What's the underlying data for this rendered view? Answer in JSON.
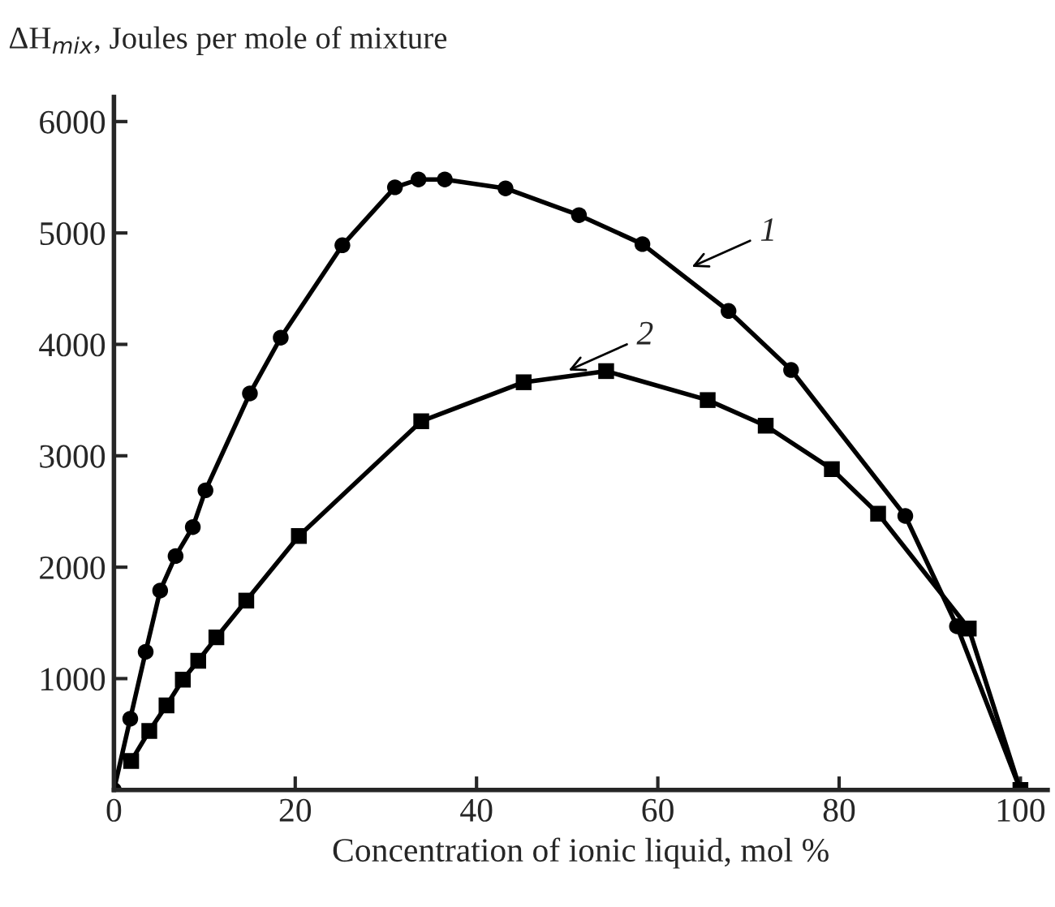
{
  "chart_data": {
    "type": "line",
    "xlabel": "Concentration of ionic liquid, mol %",
    "ylabel": "ΔH$_{mix}$, Joules per mole of mixture",
    "series": [
      {
        "color": "#000000",
        "marker": "circle",
        "x": [
          0,
          1.8,
          3.5,
          5.1,
          6.8,
          8.7,
          10.1,
          15.0,
          18.4,
          25.2,
          31.0,
          33.6,
          36.5,
          43.2,
          51.3,
          58.3,
          67.8,
          74.7,
          87.3,
          93.0,
          100
        ],
        "values": [
          0,
          640,
          1240,
          1790,
          2100,
          2360,
          2690,
          3560,
          4060,
          4890,
          5410,
          5480,
          5480,
          5400,
          5160,
          4900,
          4300,
          3770,
          2460,
          1470,
          0
        ]
      },
      {
        "color": "#000000",
        "marker": "square",
        "x": [
          1.9,
          3.9,
          5.8,
          7.6,
          9.3,
          11.3,
          14.6,
          20.4,
          33.9,
          45.2,
          54.3,
          65.5,
          71.9,
          79.2,
          84.3,
          94.3,
          100
        ],
        "values": [
          260,
          530,
          760,
          990,
          1160,
          1370,
          1700,
          2280,
          3310,
          3660,
          3760,
          3500,
          3270,
          2880,
          2480,
          1450,
          0
        ]
      }
    ],
    "annotations": [
      {
        "text": "1",
        "x": 63.3,
        "y": 4680
      },
      {
        "text": "2",
        "x": 49.7,
        "y": 3750
      }
    ],
    "xlim": [
      0,
      103
    ],
    "ylim": [
      0,
      6220
    ],
    "xticks": [
      0,
      20,
      40,
      60,
      80,
      100
    ],
    "yticks": [
      1000,
      2000,
      3000,
      4000,
      5000,
      6000
    ],
    "grid": false,
    "legend": false,
    "line_style": "solid"
  }
}
